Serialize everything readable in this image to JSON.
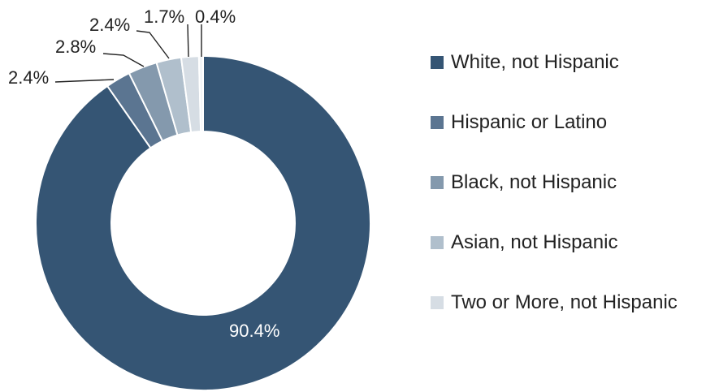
{
  "chart_data": {
    "type": "pie",
    "subtype": "donut",
    "title": "",
    "categories": [
      "White, not Hispanic",
      "Hispanic or Latino",
      "Black, not Hispanic",
      "Asian, not Hispanic",
      "Two or More, not Hispanic",
      ""
    ],
    "values": [
      90.4,
      2.4,
      2.8,
      2.4,
      1.7,
      0.4
    ],
    "labels": [
      "90.4%",
      "2.4%",
      "2.8%",
      "2.4%",
      "1.7%",
      "0.4%"
    ],
    "colors": [
      "#355574",
      "#5b7591",
      "#8499ad",
      "#b0bfcc",
      "#d6dde4",
      "#f2f4f6"
    ],
    "legend": {
      "position": "right",
      "entries": [
        "White, not Hispanic",
        "Hispanic or Latino",
        "Black, not Hispanic",
        "Asian, not Hispanic",
        "Two or More, not Hispanic"
      ]
    }
  }
}
